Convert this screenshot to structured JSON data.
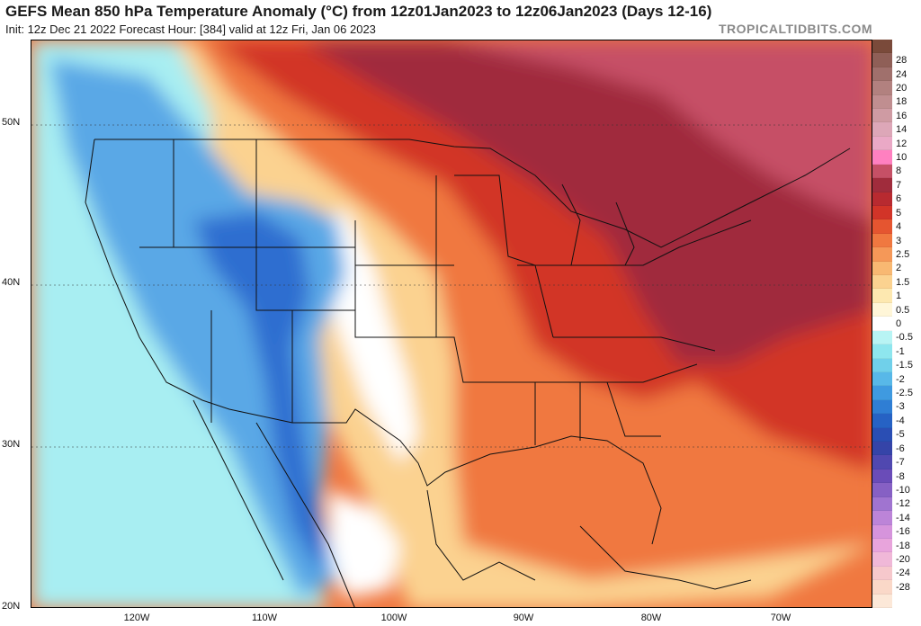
{
  "header": {
    "title": "GEFS Mean 850 hPa Temperature Anomaly (°C) from 12z01Jan2023 to 12z06Jan2023 (Days 12-16)",
    "subtitle": "Init: 12z Dec 21 2022   Forecast Hour: [384]   valid at 12z Fri, Jan 06 2023",
    "brand": "TROPICALTIDBITS.COM"
  },
  "axes": {
    "lat_labels": [
      "50N",
      "40N",
      "30N",
      "20N"
    ],
    "lon_labels": [
      "120W",
      "110W",
      "100W",
      "90W",
      "80W",
      "70W"
    ]
  },
  "legend": {
    "units": "°C",
    "items": [
      {
        "label": "",
        "color": "#7a4a3a"
      },
      {
        "label": "28",
        "color": "#8f5f57"
      },
      {
        "label": "24",
        "color": "#a0706c"
      },
      {
        "label": "20",
        "color": "#b2817f"
      },
      {
        "label": "18",
        "color": "#c08e90"
      },
      {
        "label": "16",
        "color": "#cf9ba3"
      },
      {
        "label": "14",
        "color": "#dda7b8"
      },
      {
        "label": "12",
        "color": "#eaa9c6"
      },
      {
        "label": "10",
        "color": "#ff80c0"
      },
      {
        "label": "8",
        "color": "#c65066"
      },
      {
        "label": "7",
        "color": "#a02c3c"
      },
      {
        "label": "6",
        "color": "#b82a30"
      },
      {
        "label": "5",
        "color": "#d23428"
      },
      {
        "label": "4",
        "color": "#e55530"
      },
      {
        "label": "3",
        "color": "#f07840"
      },
      {
        "label": "2.5",
        "color": "#f59858"
      },
      {
        "label": "2",
        "color": "#f8b872"
      },
      {
        "label": "1.5",
        "color": "#fbd290"
      },
      {
        "label": "1",
        "color": "#fde8b0"
      },
      {
        "label": "0.5",
        "color": "#fff6d8"
      },
      {
        "label": "0",
        "color": "#ffffff"
      },
      {
        "label": "-0.5",
        "color": "#b8f4f4"
      },
      {
        "label": "-1",
        "color": "#8ee6ee"
      },
      {
        "label": "-1.5",
        "color": "#70d0ea"
      },
      {
        "label": "-2",
        "color": "#58b8e8"
      },
      {
        "label": "-2.5",
        "color": "#3f9ae0"
      },
      {
        "label": "-3",
        "color": "#2f7ed4"
      },
      {
        "label": "-4",
        "color": "#2662c4"
      },
      {
        "label": "-5",
        "color": "#2a4eb4"
      },
      {
        "label": "-6",
        "color": "#3544a8"
      },
      {
        "label": "-7",
        "color": "#5048b0"
      },
      {
        "label": "-8",
        "color": "#6a4cb8"
      },
      {
        "label": "-10",
        "color": "#8660c4"
      },
      {
        "label": "-12",
        "color": "#a074d0"
      },
      {
        "label": "-14",
        "color": "#bc84d8"
      },
      {
        "label": "-16",
        "color": "#d694dc"
      },
      {
        "label": "-18",
        "color": "#e8a4dc"
      },
      {
        "label": "-20",
        "color": "#f0b8d8"
      },
      {
        "label": "-24",
        "color": "#f6c8cc"
      },
      {
        "label": "-28",
        "color": "#fad8c8"
      },
      {
        "label": "",
        "color": "#fce8d8"
      }
    ]
  },
  "map_colors": {
    "ocean_cold": "#a8eef2",
    "cold_blue": "#5aa8e6",
    "deep_blue": "#2f6ed0",
    "neutral": "#ffffff",
    "warm_yellow": "#fbd290",
    "warm_orange": "#f07840",
    "warm_red": "#d23428",
    "dark_red": "#a02c3c",
    "pink_red": "#c65066",
    "border_line": "#111111"
  }
}
